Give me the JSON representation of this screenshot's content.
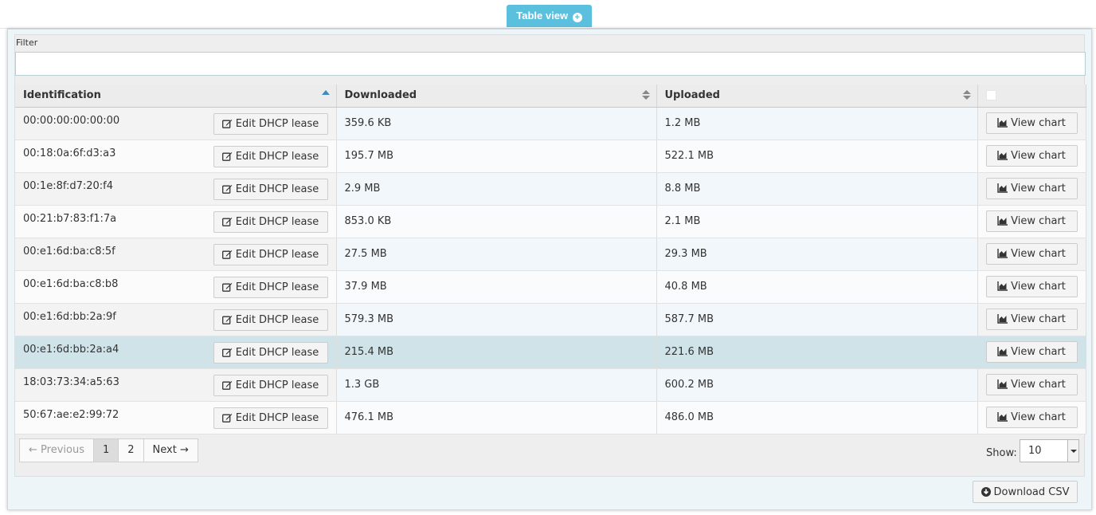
{
  "tab": {
    "label": "Table view"
  },
  "filter": {
    "label": "Filter",
    "value": "",
    "placeholder": ""
  },
  "columns": [
    "Identification",
    "Downloaded",
    "Uploaded"
  ],
  "edit_label": "Edit DHCP lease",
  "chart_label": "View chart",
  "rows": [
    {
      "id": "00:00:00:00:00:00",
      "downloaded": "359.6 KB",
      "uploaded": "1.2 MB"
    },
    {
      "id": "00:18:0a:6f:d3:a3",
      "downloaded": "195.7 MB",
      "uploaded": "522.1 MB"
    },
    {
      "id": "00:1e:8f:d7:20:f4",
      "downloaded": "2.9 MB",
      "uploaded": "8.8 MB"
    },
    {
      "id": "00:21:b7:83:f1:7a",
      "downloaded": "853.0 KB",
      "uploaded": "2.1 MB"
    },
    {
      "id": "00:e1:6d:ba:c8:5f",
      "downloaded": "27.5 MB",
      "uploaded": "29.3 MB"
    },
    {
      "id": "00:e1:6d:ba:c8:b8",
      "downloaded": "37.9 MB",
      "uploaded": "40.8 MB"
    },
    {
      "id": "00:e1:6d:bb:2a:9f",
      "downloaded": "579.3 MB",
      "uploaded": "587.7 MB"
    },
    {
      "id": "00:e1:6d:bb:2a:a4",
      "downloaded": "215.4 MB",
      "uploaded": "221.6 MB"
    },
    {
      "id": "18:03:73:34:a5:63",
      "downloaded": "1.3 GB",
      "uploaded": "600.2 MB"
    },
    {
      "id": "50:67:ae:e2:99:72",
      "downloaded": "476.1 MB",
      "uploaded": "486.0 MB"
    }
  ],
  "highlighted_row": 7,
  "pagination": {
    "previous": "← Previous",
    "pages": [
      "1",
      "2"
    ],
    "current": "1",
    "next": "Next →"
  },
  "show": {
    "label": "Show:",
    "value": "10"
  },
  "csv": {
    "label": "Download CSV"
  },
  "colors": {
    "accent": "#5bc0de",
    "highlight_row": "#cfe3e8",
    "sort_active": "#3c8dbc"
  }
}
